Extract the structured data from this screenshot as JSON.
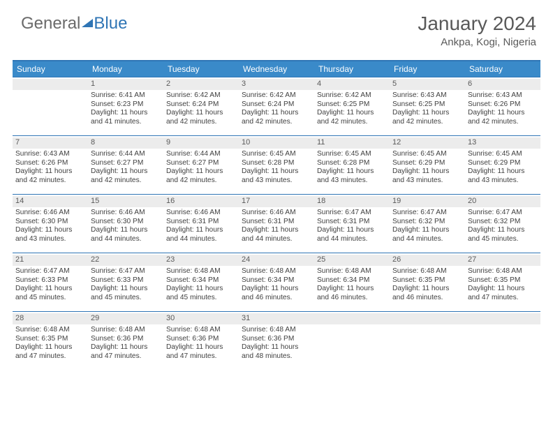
{
  "brand": {
    "part1": "General",
    "part2": "Blue"
  },
  "title": "January 2024",
  "location": "Ankpa, Kogi, Nigeria",
  "colors": {
    "header_bg": "#3a8ac9",
    "border": "#2f75b5",
    "daynum_bg": "#ececec",
    "text": "#404040"
  },
  "weekdays": [
    "Sunday",
    "Monday",
    "Tuesday",
    "Wednesday",
    "Thursday",
    "Friday",
    "Saturday"
  ],
  "cells": [
    {
      "n": "",
      "sr": "",
      "ss": "",
      "dl": ""
    },
    {
      "n": "1",
      "sr": "Sunrise: 6:41 AM",
      "ss": "Sunset: 6:23 PM",
      "dl": "Daylight: 11 hours and 41 minutes."
    },
    {
      "n": "2",
      "sr": "Sunrise: 6:42 AM",
      "ss": "Sunset: 6:24 PM",
      "dl": "Daylight: 11 hours and 42 minutes."
    },
    {
      "n": "3",
      "sr": "Sunrise: 6:42 AM",
      "ss": "Sunset: 6:24 PM",
      "dl": "Daylight: 11 hours and 42 minutes."
    },
    {
      "n": "4",
      "sr": "Sunrise: 6:42 AM",
      "ss": "Sunset: 6:25 PM",
      "dl": "Daylight: 11 hours and 42 minutes."
    },
    {
      "n": "5",
      "sr": "Sunrise: 6:43 AM",
      "ss": "Sunset: 6:25 PM",
      "dl": "Daylight: 11 hours and 42 minutes."
    },
    {
      "n": "6",
      "sr": "Sunrise: 6:43 AM",
      "ss": "Sunset: 6:26 PM",
      "dl": "Daylight: 11 hours and 42 minutes."
    },
    {
      "n": "7",
      "sr": "Sunrise: 6:43 AM",
      "ss": "Sunset: 6:26 PM",
      "dl": "Daylight: 11 hours and 42 minutes."
    },
    {
      "n": "8",
      "sr": "Sunrise: 6:44 AM",
      "ss": "Sunset: 6:27 PM",
      "dl": "Daylight: 11 hours and 42 minutes."
    },
    {
      "n": "9",
      "sr": "Sunrise: 6:44 AM",
      "ss": "Sunset: 6:27 PM",
      "dl": "Daylight: 11 hours and 42 minutes."
    },
    {
      "n": "10",
      "sr": "Sunrise: 6:45 AM",
      "ss": "Sunset: 6:28 PM",
      "dl": "Daylight: 11 hours and 43 minutes."
    },
    {
      "n": "11",
      "sr": "Sunrise: 6:45 AM",
      "ss": "Sunset: 6:28 PM",
      "dl": "Daylight: 11 hours and 43 minutes."
    },
    {
      "n": "12",
      "sr": "Sunrise: 6:45 AM",
      "ss": "Sunset: 6:29 PM",
      "dl": "Daylight: 11 hours and 43 minutes."
    },
    {
      "n": "13",
      "sr": "Sunrise: 6:45 AM",
      "ss": "Sunset: 6:29 PM",
      "dl": "Daylight: 11 hours and 43 minutes."
    },
    {
      "n": "14",
      "sr": "Sunrise: 6:46 AM",
      "ss": "Sunset: 6:30 PM",
      "dl": "Daylight: 11 hours and 43 minutes."
    },
    {
      "n": "15",
      "sr": "Sunrise: 6:46 AM",
      "ss": "Sunset: 6:30 PM",
      "dl": "Daylight: 11 hours and 44 minutes."
    },
    {
      "n": "16",
      "sr": "Sunrise: 6:46 AM",
      "ss": "Sunset: 6:31 PM",
      "dl": "Daylight: 11 hours and 44 minutes."
    },
    {
      "n": "17",
      "sr": "Sunrise: 6:46 AM",
      "ss": "Sunset: 6:31 PM",
      "dl": "Daylight: 11 hours and 44 minutes."
    },
    {
      "n": "18",
      "sr": "Sunrise: 6:47 AM",
      "ss": "Sunset: 6:31 PM",
      "dl": "Daylight: 11 hours and 44 minutes."
    },
    {
      "n": "19",
      "sr": "Sunrise: 6:47 AM",
      "ss": "Sunset: 6:32 PM",
      "dl": "Daylight: 11 hours and 44 minutes."
    },
    {
      "n": "20",
      "sr": "Sunrise: 6:47 AM",
      "ss": "Sunset: 6:32 PM",
      "dl": "Daylight: 11 hours and 45 minutes."
    },
    {
      "n": "21",
      "sr": "Sunrise: 6:47 AM",
      "ss": "Sunset: 6:33 PM",
      "dl": "Daylight: 11 hours and 45 minutes."
    },
    {
      "n": "22",
      "sr": "Sunrise: 6:47 AM",
      "ss": "Sunset: 6:33 PM",
      "dl": "Daylight: 11 hours and 45 minutes."
    },
    {
      "n": "23",
      "sr": "Sunrise: 6:48 AM",
      "ss": "Sunset: 6:34 PM",
      "dl": "Daylight: 11 hours and 45 minutes."
    },
    {
      "n": "24",
      "sr": "Sunrise: 6:48 AM",
      "ss": "Sunset: 6:34 PM",
      "dl": "Daylight: 11 hours and 46 minutes."
    },
    {
      "n": "25",
      "sr": "Sunrise: 6:48 AM",
      "ss": "Sunset: 6:34 PM",
      "dl": "Daylight: 11 hours and 46 minutes."
    },
    {
      "n": "26",
      "sr": "Sunrise: 6:48 AM",
      "ss": "Sunset: 6:35 PM",
      "dl": "Daylight: 11 hours and 46 minutes."
    },
    {
      "n": "27",
      "sr": "Sunrise: 6:48 AM",
      "ss": "Sunset: 6:35 PM",
      "dl": "Daylight: 11 hours and 47 minutes."
    },
    {
      "n": "28",
      "sr": "Sunrise: 6:48 AM",
      "ss": "Sunset: 6:35 PM",
      "dl": "Daylight: 11 hours and 47 minutes."
    },
    {
      "n": "29",
      "sr": "Sunrise: 6:48 AM",
      "ss": "Sunset: 6:36 PM",
      "dl": "Daylight: 11 hours and 47 minutes."
    },
    {
      "n": "30",
      "sr": "Sunrise: 6:48 AM",
      "ss": "Sunset: 6:36 PM",
      "dl": "Daylight: 11 hours and 47 minutes."
    },
    {
      "n": "31",
      "sr": "Sunrise: 6:48 AM",
      "ss": "Sunset: 6:36 PM",
      "dl": "Daylight: 11 hours and 48 minutes."
    },
    {
      "n": "",
      "sr": "",
      "ss": "",
      "dl": ""
    },
    {
      "n": "",
      "sr": "",
      "ss": "",
      "dl": ""
    },
    {
      "n": "",
      "sr": "",
      "ss": "",
      "dl": ""
    }
  ]
}
